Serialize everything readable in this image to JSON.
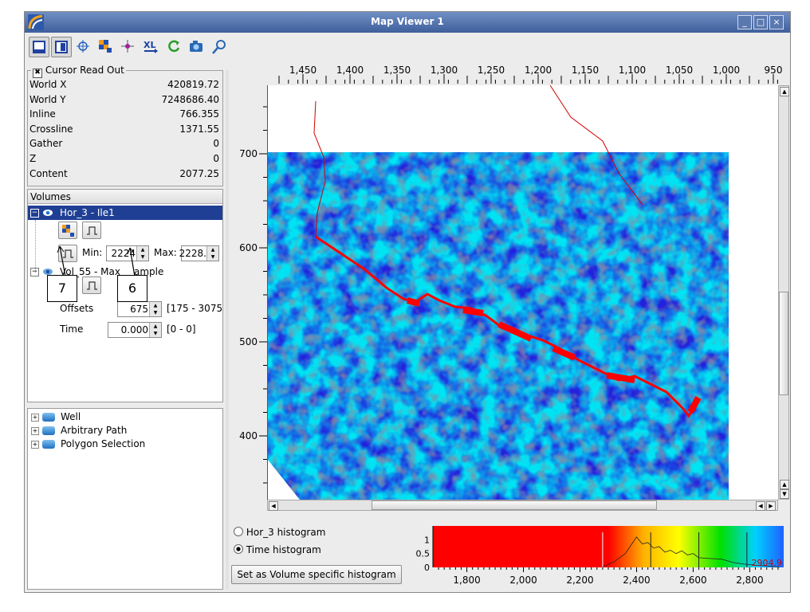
{
  "window": {
    "title": "Map Viewer 1"
  },
  "cursor_readout": {
    "title": "Cursor Read Out",
    "rows": [
      {
        "label": "World X",
        "value": "420819.72"
      },
      {
        "label": "World Y",
        "value": "7248686.40"
      },
      {
        "label": "Inline",
        "value": "766.355"
      },
      {
        "label": "Crossline",
        "value": "1371.55"
      },
      {
        "label": "Gather",
        "value": "0"
      },
      {
        "label": "Z",
        "value": "0"
      },
      {
        "label": "Content",
        "value": "2077.25"
      }
    ]
  },
  "volumes": {
    "header": "Volumes",
    "item1": "Hor_3 - Ile1",
    "min_label": "Min:",
    "min_value": "2224",
    "max_label": "Max:",
    "max_value": "2228.",
    "item2_a": "Vol_55 - Max",
    "item2_b": "ample",
    "offsets_label": "Offsets",
    "offsets_value": "675",
    "offsets_range": "[175 - 3075",
    "time_label": "Time",
    "time_value": "0.000",
    "time_range": "[0 - 0]"
  },
  "callouts": {
    "c7": "7",
    "c6": "6"
  },
  "objects": {
    "items": [
      "Well",
      "Arbitrary Path",
      "Polygon Selection"
    ]
  },
  "map": {
    "x_ticks": [
      "1,450",
      "1,400",
      "1,350",
      "1,300",
      "1,250",
      "1,200",
      "1,150",
      "1,100",
      "1,050",
      "1,000",
      "950"
    ],
    "y_ticks": [
      "700",
      "600",
      "500",
      "400"
    ]
  },
  "histogram": {
    "radio1": "Hor_3 histogram",
    "radio2": "Time histogram",
    "set_button": "Set as Volume specific histogram",
    "y_ticks": [
      "1",
      "0.5",
      "0"
    ],
    "x_ticks": [
      "1,800",
      "2,000",
      "2,200",
      "2,400",
      "2,600",
      "2,800"
    ],
    "max_value": "2904.9"
  },
  "colors": {
    "accent": "#1f3f94",
    "cyan": "#00e5f5",
    "horizon": "#ff0000"
  }
}
